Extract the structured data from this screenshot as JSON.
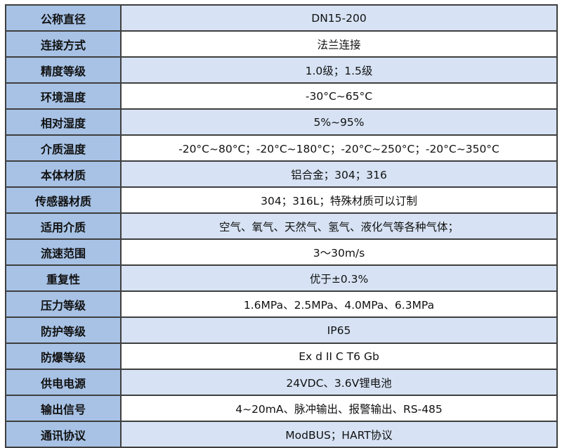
{
  "spec_table": {
    "rows": [
      {
        "label": "公称直径",
        "value": "DN15-200"
      },
      {
        "label": "连接方式",
        "value": "法兰连接"
      },
      {
        "label": "精度等级",
        "value": "1.0级；1.5级"
      },
      {
        "label": "环境温度",
        "value": "-30°C~65°C"
      },
      {
        "label": "相对湿度",
        "value": "5%~95%"
      },
      {
        "label": "介质温度",
        "value": "-20°C~80°C；-20°C~180°C；-20°C~250°C；-20°C~350°C"
      },
      {
        "label": "本体材质",
        "value": "铝合金；304；316"
      },
      {
        "label": "传感器材质",
        "value": "304；316L；特殊材质可以订制"
      },
      {
        "label": "适用介质",
        "value": "空气、氧气、天然气、氢气、液化气等各种气体；"
      },
      {
        "label": "流速范围",
        "value": "3～30m/s"
      },
      {
        "label": "重复性",
        "value": "优于±0.3%"
      },
      {
        "label": "压力等级",
        "value": "1.6MPa、2.5MPa、4.0MPa、6.3MPa"
      },
      {
        "label": "防护等级",
        "value": "IP65"
      },
      {
        "label": "防爆等级",
        "value": "Ex d II C T6 Gb"
      },
      {
        "label": "供电电源",
        "value": "24VDC、3.6V锂电池"
      },
      {
        "label": "输出信号",
        "value": "4~20mA、脉冲输出、报警输出、RS-485"
      },
      {
        "label": "通讯协议",
        "value": "ModBUS；HART协议"
      }
    ]
  },
  "colors": {
    "label_bg": "#a7c2e5",
    "stripe_bg": "#d7e3f4",
    "border": "#3f3f3f"
  }
}
